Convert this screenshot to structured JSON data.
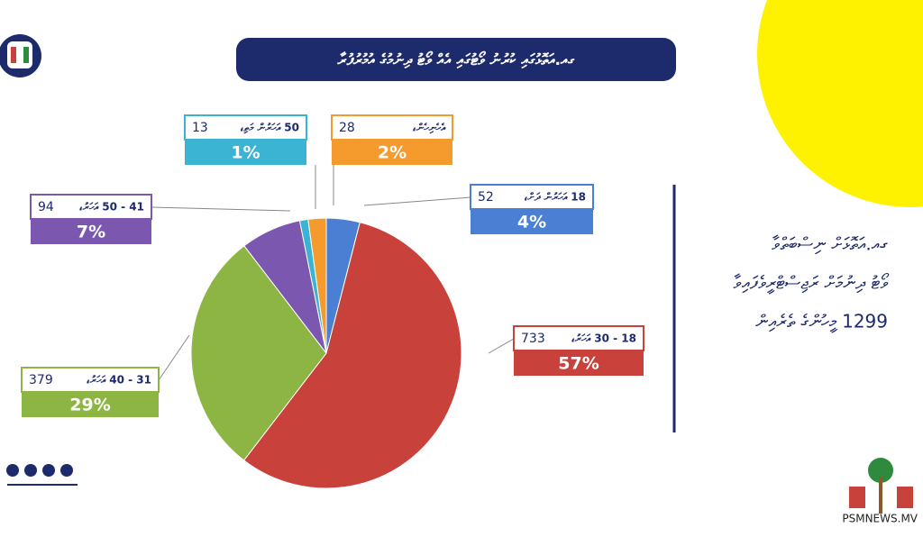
{
  "chart_data": {
    "type": "pie",
    "title": "ގއ.އަތޮޅުގައި ކުރުނު ވޯޓުގައި އެއް ވޯޓު ދިނުމުގެ އުމުރުފުރާ",
    "categories": [
      "18 އަހަރުން ދަށް،",
      "18 - 30 އަހަރު،",
      "31 - 40 އަހަރު،",
      "41 - 50 އަހަރު،",
      "50 އަހަރުން މަތި،",
      "އެހެނިހެން،"
    ],
    "values": [
      52,
      733,
      379,
      94,
      13,
      28
    ],
    "percent_labels": [
      "4%",
      "57%",
      "29%",
      "7%",
      "1%",
      "2%"
    ],
    "colors": [
      "#4a7fd4",
      "#c8413b",
      "#8db543",
      "#7b57b0",
      "#3bb4d4",
      "#f59a2c"
    ]
  },
  "side_text": [
    "ގއ.އަތޮޅަށް ނިސްބަތްވާ",
    "ވޯޓު ދިނުމަށް ރަޖިސްޓްރީވެފައިވާ",
    "1299 މީހުންގެ ތެރެއިން"
  ],
  "watermark": "PSMNEWS.MV"
}
